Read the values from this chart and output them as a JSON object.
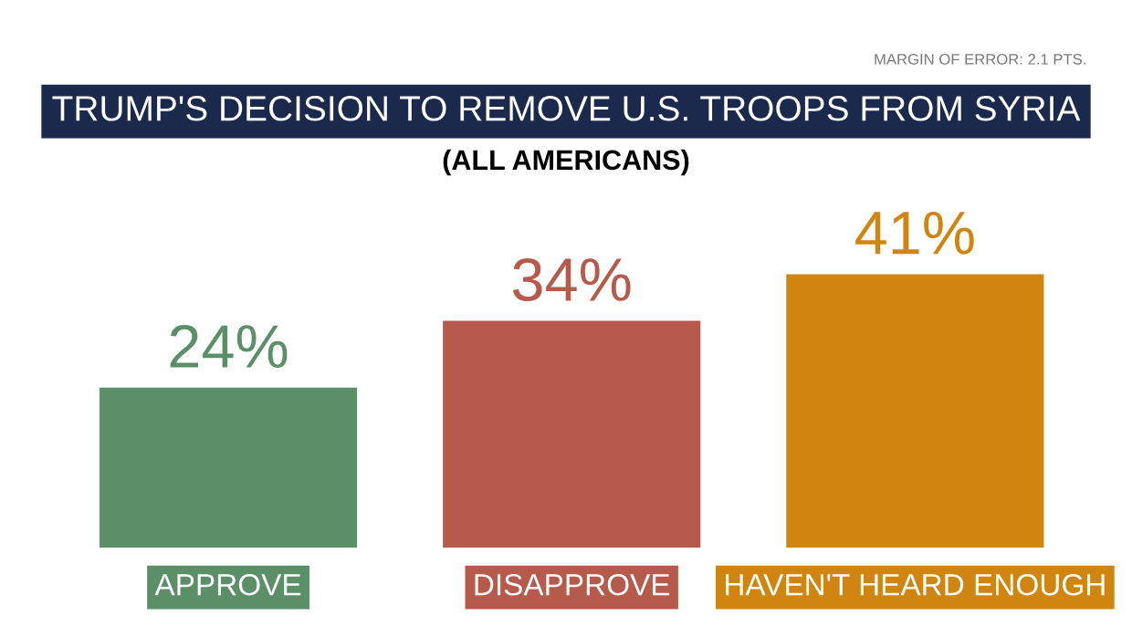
{
  "chart_data": {
    "type": "bar",
    "title": "TRUMP'S DECISION TO REMOVE U.S. TROOPS FROM SYRIA",
    "subtitle": "(ALL AMERICANS)",
    "annotations": [
      "MARGIN OF ERROR: 2.1 PTS."
    ],
    "categories": [
      "APPROVE",
      "DISAPPROVE",
      "HAVEN'T HEARD ENOUGH"
    ],
    "values": [
      24,
      34,
      41
    ],
    "colors": [
      "#5b8f68",
      "#b65b4b",
      "#cf8510"
    ],
    "value_labels": [
      "24%",
      "34%",
      "41%"
    ],
    "grid": false,
    "legend": false
  }
}
